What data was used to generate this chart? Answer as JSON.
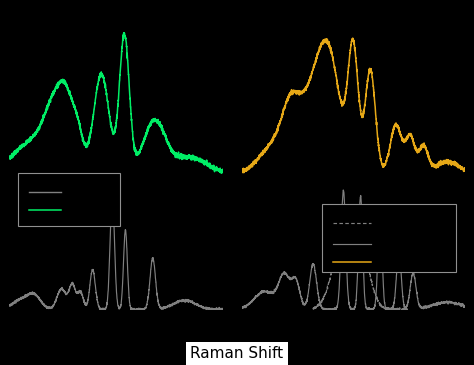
{
  "background_color": "#000000",
  "title": "Raman Shift",
  "title_color": "#000000",
  "title_bg": "#ffffff",
  "left_spectrum_color": "#00ee66",
  "right_spectrum_color": "#e6a817",
  "gray_color": "#808080",
  "fig_width": 4.74,
  "fig_height": 3.65,
  "dpi": 100
}
